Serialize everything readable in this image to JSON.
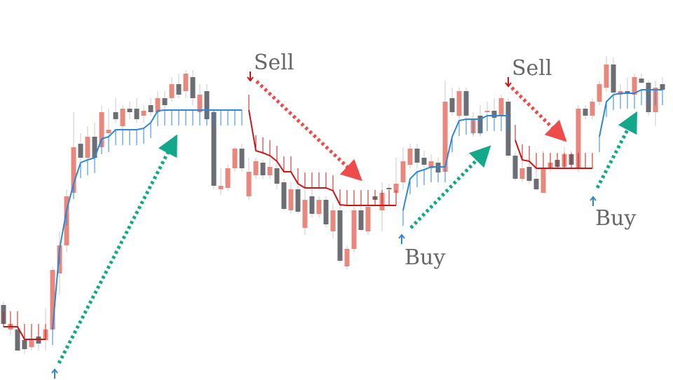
{
  "chart_data": {
    "type": "candlestick",
    "ylim": [
      542,
      0
    ],
    "up_color": "#e8877c",
    "down_color": "#6b6e73",
    "candles": [
      [
        435,
        430,
        468,
        462
      ],
      [
        470,
        455,
        478,
        462
      ],
      [
        470,
        465,
        500,
        500
      ],
      [
        485,
        475,
        505,
        498
      ],
      [
        495,
        470,
        500,
        485
      ],
      [
        480,
        470,
        500,
        490
      ],
      [
        485,
        440,
        500,
        470
      ],
      [
        470,
        380,
        490,
        385
      ],
      [
        390,
        330,
        420,
        350
      ],
      [
        350,
        270,
        360,
        280
      ],
      [
        275,
        160,
        280,
        210
      ],
      [
        205,
        190,
        230,
        225
      ],
      [
        225,
        180,
        230,
        195
      ],
      [
        195,
        175,
        230,
        225
      ],
      [
        210,
        150,
        215,
        160
      ],
      [
        190,
        155,
        200,
        185
      ],
      [
        160,
        140,
        175,
        170
      ],
      [
        180,
        150,
        185,
        155
      ],
      [
        155,
        145,
        170,
        160
      ],
      [
        155,
        140,
        175,
        170
      ],
      [
        165,
        150,
        175,
        158
      ],
      [
        150,
        140,
        165,
        160
      ],
      [
        160,
        130,
        165,
        140
      ],
      [
        140,
        130,
        160,
        150
      ],
      [
        140,
        110,
        145,
        120
      ],
      [
        120,
        105,
        140,
        135
      ],
      [
        130,
        100,
        140,
        105
      ],
      [
        110,
        100,
        150,
        140
      ],
      [
        160,
        120,
        175,
        135
      ],
      [
        130,
        120,
        175,
        170
      ],
      [
        160,
        155,
        270,
        265
      ],
      [
        270,
        240,
        278,
        265
      ],
      [
        268,
        235,
        272,
        240
      ],
      [
        240,
        210,
        245,
        212
      ],
      [
        212,
        205,
        245,
        240
      ],
      [
        280,
        225,
        285,
        245
      ],
      [
        250,
        225,
        255,
        230
      ],
      [
        232,
        228,
        255,
        250
      ],
      [
        250,
        225,
        255,
        238
      ],
      [
        240,
        230,
        270,
        262
      ],
      [
        260,
        255,
        300,
        298
      ],
      [
        300,
        260,
        305,
        270
      ],
      [
        270,
        265,
        305,
        302
      ],
      [
        325,
        270,
        335,
        285
      ],
      [
        280,
        270,
        310,
        305
      ],
      [
        305,
        280,
        310,
        285
      ],
      [
        285,
        280,
        325,
        320
      ],
      [
        330,
        290,
        340,
        300
      ],
      [
        300,
        290,
        375,
        372
      ],
      [
        380,
        350,
        385,
        355
      ],
      [
        355,
        295,
        360,
        300
      ],
      [
        300,
        280,
        330,
        328
      ],
      [
        330,
        290,
        335,
        295
      ],
      [
        280,
        270,
        290,
        285
      ],
      [
        300,
        260,
        330,
        275
      ],
      [
        268,
        262,
        272,
        270
      ],
      [
        275,
        225,
        280,
        262
      ],
      [
        260,
        210,
        270,
        230
      ],
      [
        235,
        205,
        240,
        212
      ],
      [
        212,
        205,
        240,
        232
      ],
      [
        225,
        215,
        240,
        235
      ],
      [
        240,
        220,
        250,
        230
      ],
      [
        232,
        225,
        250,
        246
      ],
      [
        245,
        115,
        250,
        145
      ],
      [
        140,
        125,
        165,
        160
      ],
      [
        165,
        125,
        170,
        130
      ],
      [
        130,
        125,
        170,
        165
      ],
      [
        190,
        160,
        195,
        170
      ],
      [
        165,
        150,
        195,
        190
      ],
      [
        160,
        145,
        175,
        158
      ],
      [
        158,
        140,
        175,
        168
      ],
      [
        165,
        135,
        170,
        140
      ],
      [
        145,
        140,
        225,
        222
      ],
      [
        222,
        215,
        258,
        255
      ],
      [
        255,
        230,
        260,
        240
      ],
      [
        238,
        230,
        262,
        258
      ],
      [
        255,
        240,
        272,
        270
      ],
      [
        275,
        215,
        275,
        240
      ],
      [
        240,
        225,
        245,
        232
      ],
      [
        228,
        222,
        240,
        238
      ],
      [
        238,
        210,
        242,
        220
      ],
      [
        220,
        215,
        240,
        235
      ],
      [
        240,
        150,
        245,
        155
      ],
      [
        155,
        150,
        170,
        165
      ],
      [
        165,
        140,
        170,
        145
      ],
      [
        145,
        115,
        150,
        120
      ],
      [
        125,
        80,
        130,
        92
      ],
      [
        92,
        82,
        135,
        132
      ],
      [
        135,
        120,
        140,
        130
      ],
      [
        130,
        110,
        135,
        132
      ],
      [
        135,
        105,
        140,
        110
      ],
      [
        112,
        105,
        120,
        118
      ],
      [
        118,
        115,
        165,
        160
      ],
      [
        160,
        115,
        180,
        125
      ],
      [
        120,
        110,
        130,
        128
      ]
    ],
    "support": {
      "color": "#2e86d6",
      "values": [
        null,
        null,
        null,
        null,
        null,
        null,
        null,
        470,
        355,
        300,
        262,
        232,
        228,
        225,
        198,
        195,
        185,
        185,
        185,
        185,
        183,
        175,
        158,
        157,
        157,
        157,
        157,
        157,
        157,
        157,
        157,
        157,
        157,
        157,
        157,
        null,
        null,
        null,
        null,
        null,
        null,
        null,
        null,
        null,
        null,
        null,
        null,
        null,
        null,
        null,
        null,
        null,
        null,
        null,
        null,
        null,
        null,
        300,
        255,
        245,
        242,
        238,
        238,
        238,
        195,
        172,
        170,
        170,
        170,
        165,
        165,
        165,
        165,
        null,
        null,
        null,
        null,
        null,
        null,
        null,
        null,
        null,
        null,
        null,
        null,
        195,
        145,
        135,
        133,
        133,
        133,
        128,
        128,
        128,
        128
      ]
    },
    "resistance": {
      "color": "#cc1414",
      "values": [
        466,
        466,
        466,
        484,
        484,
        484,
        484,
        null,
        null,
        null,
        null,
        null,
        null,
        null,
        null,
        null,
        null,
        null,
        null,
        null,
        null,
        null,
        null,
        null,
        null,
        null,
        null,
        null,
        null,
        null,
        null,
        null,
        null,
        null,
        null,
        157,
        215,
        218,
        222,
        230,
        245,
        245,
        262,
        268,
        268,
        268,
        268,
        272,
        292,
        293,
        293,
        293,
        293,
        293,
        293,
        293,
        293,
        null,
        null,
        null,
        null,
        null,
        null,
        null,
        null,
        null,
        null,
        null,
        null,
        null,
        null,
        null,
        null,
        200,
        228,
        230,
        240,
        240,
        240,
        240,
        240,
        240,
        240,
        240,
        240,
        null,
        null,
        null,
        null,
        null,
        null,
        null,
        null,
        null,
        null
      ]
    },
    "annotations": [
      "Sell",
      "Sell",
      "Buy",
      "Buy"
    ]
  }
}
